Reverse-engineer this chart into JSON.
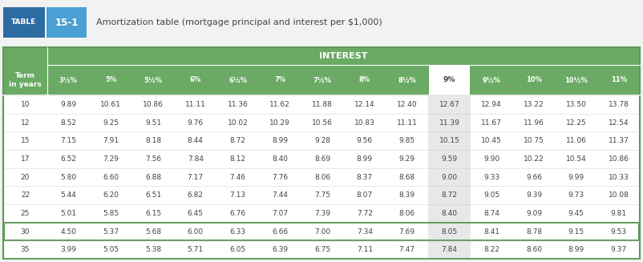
{
  "title": "Amortization table (mortgage principal and interest per $1,000)",
  "table_label": "TABLE",
  "table_number": "15-1",
  "interest_header": "INTEREST",
  "col_header": "Term\nin years",
  "columns": [
    "3½%",
    "5%",
    "5½%",
    "6%",
    "6½%",
    "7%",
    "7½%",
    "8%",
    "8½%",
    "9%",
    "9½%",
    "10%",
    "10½%",
    "11%"
  ],
  "rows": [
    [
      10,
      9.89,
      10.61,
      10.86,
      11.11,
      11.36,
      11.62,
      11.88,
      12.14,
      12.4,
      12.67,
      12.94,
      13.22,
      13.5,
      13.78
    ],
    [
      12,
      8.52,
      9.25,
      9.51,
      9.76,
      10.02,
      10.29,
      10.56,
      10.83,
      11.11,
      11.39,
      11.67,
      11.96,
      12.25,
      12.54
    ],
    [
      15,
      7.15,
      7.91,
      8.18,
      8.44,
      8.72,
      8.99,
      9.28,
      9.56,
      9.85,
      10.15,
      10.45,
      10.75,
      11.06,
      11.37
    ],
    [
      17,
      6.52,
      7.29,
      7.56,
      7.84,
      8.12,
      8.4,
      8.69,
      8.99,
      9.29,
      9.59,
      9.9,
      10.22,
      10.54,
      10.86
    ],
    [
      20,
      5.8,
      6.6,
      6.88,
      7.17,
      7.46,
      7.76,
      8.06,
      8.37,
      8.68,
      9.0,
      9.33,
      9.66,
      9.99,
      10.33
    ],
    [
      22,
      5.44,
      6.2,
      6.51,
      6.82,
      7.13,
      7.44,
      7.75,
      8.07,
      8.39,
      8.72,
      9.05,
      9.39,
      9.73,
      10.08
    ],
    [
      25,
      5.01,
      5.85,
      6.15,
      6.45,
      6.76,
      7.07,
      7.39,
      7.72,
      8.06,
      8.4,
      8.74,
      9.09,
      9.45,
      9.81
    ],
    [
      30,
      4.5,
      5.37,
      5.68,
      6.0,
      6.33,
      6.66,
      7.0,
      7.34,
      7.69,
      8.05,
      8.41,
      8.78,
      9.15,
      9.53
    ],
    [
      35,
      3.99,
      5.05,
      5.38,
      5.71,
      6.05,
      6.39,
      6.75,
      7.11,
      7.47,
      7.84,
      8.22,
      8.6,
      8.99,
      9.37
    ]
  ],
  "highlighted_col_idx": 9,
  "highlighted_row_idx": 7,
  "green_color": "#6aaa64",
  "dark_green": "#5a9a54",
  "highlight_col_bg": "#e8e8e8",
  "highlight_col_header_bg": "#ffffff",
  "table_label_bg": "#2d6ca2",
  "table_num_bg": "#4a9fd4",
  "title_bg": "#ffffff",
  "white": "#ffffff",
  "text_dark": "#444444",
  "border_color": "#bbbbbb",
  "fig_bg": "#f2f2f2",
  "figsize": [
    8.02,
    3.27
  ],
  "dpi": 100
}
